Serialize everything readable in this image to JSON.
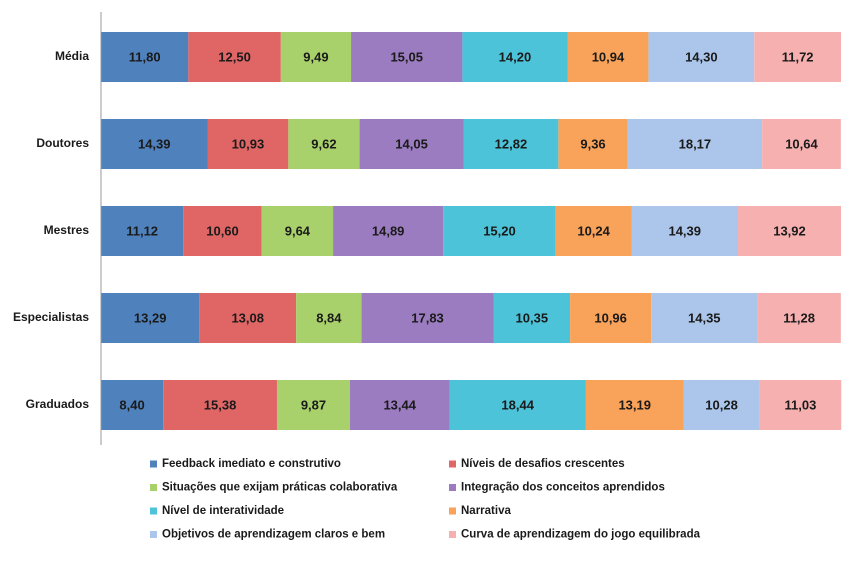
{
  "chart_data": {
    "type": "stacked_barh",
    "categories": [
      "Média",
      "Doutores",
      "Mestres",
      "Especialistas",
      "Graduados"
    ],
    "xlim": [
      0,
      100
    ],
    "legend": "bottom",
    "series": [
      {
        "name": "Feedback imediato e construtivo",
        "color": "#4f81bd",
        "values": [
          11.8,
          14.39,
          11.12,
          13.29,
          8.4
        ],
        "value_labels": [
          "11,80",
          "14,39",
          "11,12",
          "13,29",
          "8,40"
        ]
      },
      {
        "name": "Níveis de desafios crescentes",
        "color": "#e06666",
        "values": [
          12.5,
          10.93,
          10.6,
          13.08,
          15.38
        ],
        "value_labels": [
          "12,50",
          "10,93",
          "10,60",
          "13,08",
          "15,38"
        ]
      },
      {
        "name": "Situações que exijam práticas colaborativa",
        "color": "#a9d16b",
        "values": [
          9.49,
          9.62,
          9.64,
          8.84,
          9.87
        ],
        "value_labels": [
          "9,49",
          "9,62",
          "9,64",
          "8,84",
          "9,87"
        ]
      },
      {
        "name": "Integração dos conceitos aprendidos",
        "color": "#9b7cc0",
        "values": [
          15.05,
          14.05,
          14.89,
          17.83,
          13.44
        ],
        "value_labels": [
          "15,05",
          "14,05",
          "14,89",
          "17,83",
          "13,44"
        ]
      },
      {
        "name": "Nível de interatividade",
        "color": "#4dc3d9",
        "values": [
          14.2,
          12.82,
          15.2,
          10.35,
          18.44
        ],
        "value_labels": [
          "14,20",
          "12,82",
          "15,20",
          "10,35",
          "18,44"
        ]
      },
      {
        "name": "Narrativa",
        "color": "#f9a25a",
        "values": [
          10.94,
          9.36,
          10.24,
          10.96,
          13.19
        ],
        "value_labels": [
          "10,94",
          "9,36",
          "10,24",
          "10,96",
          "13,19"
        ]
      },
      {
        "name": "Objetivos de aprendizagem claros e bem",
        "color": "#abc6ea",
        "values": [
          14.3,
          18.17,
          14.39,
          14.35,
          10.28
        ],
        "value_labels": [
          "14,30",
          "18,17",
          "14,39",
          "14,35",
          "10,28"
        ]
      },
      {
        "name": "Curva de aprendizagem do jogo equilibrada",
        "color": "#f6b0b0",
        "values": [
          11.72,
          10.64,
          13.92,
          11.28,
          11.03
        ],
        "value_labels": [
          "11,72",
          "10,64",
          "13,92",
          "11,28",
          "11,03"
        ]
      }
    ]
  }
}
